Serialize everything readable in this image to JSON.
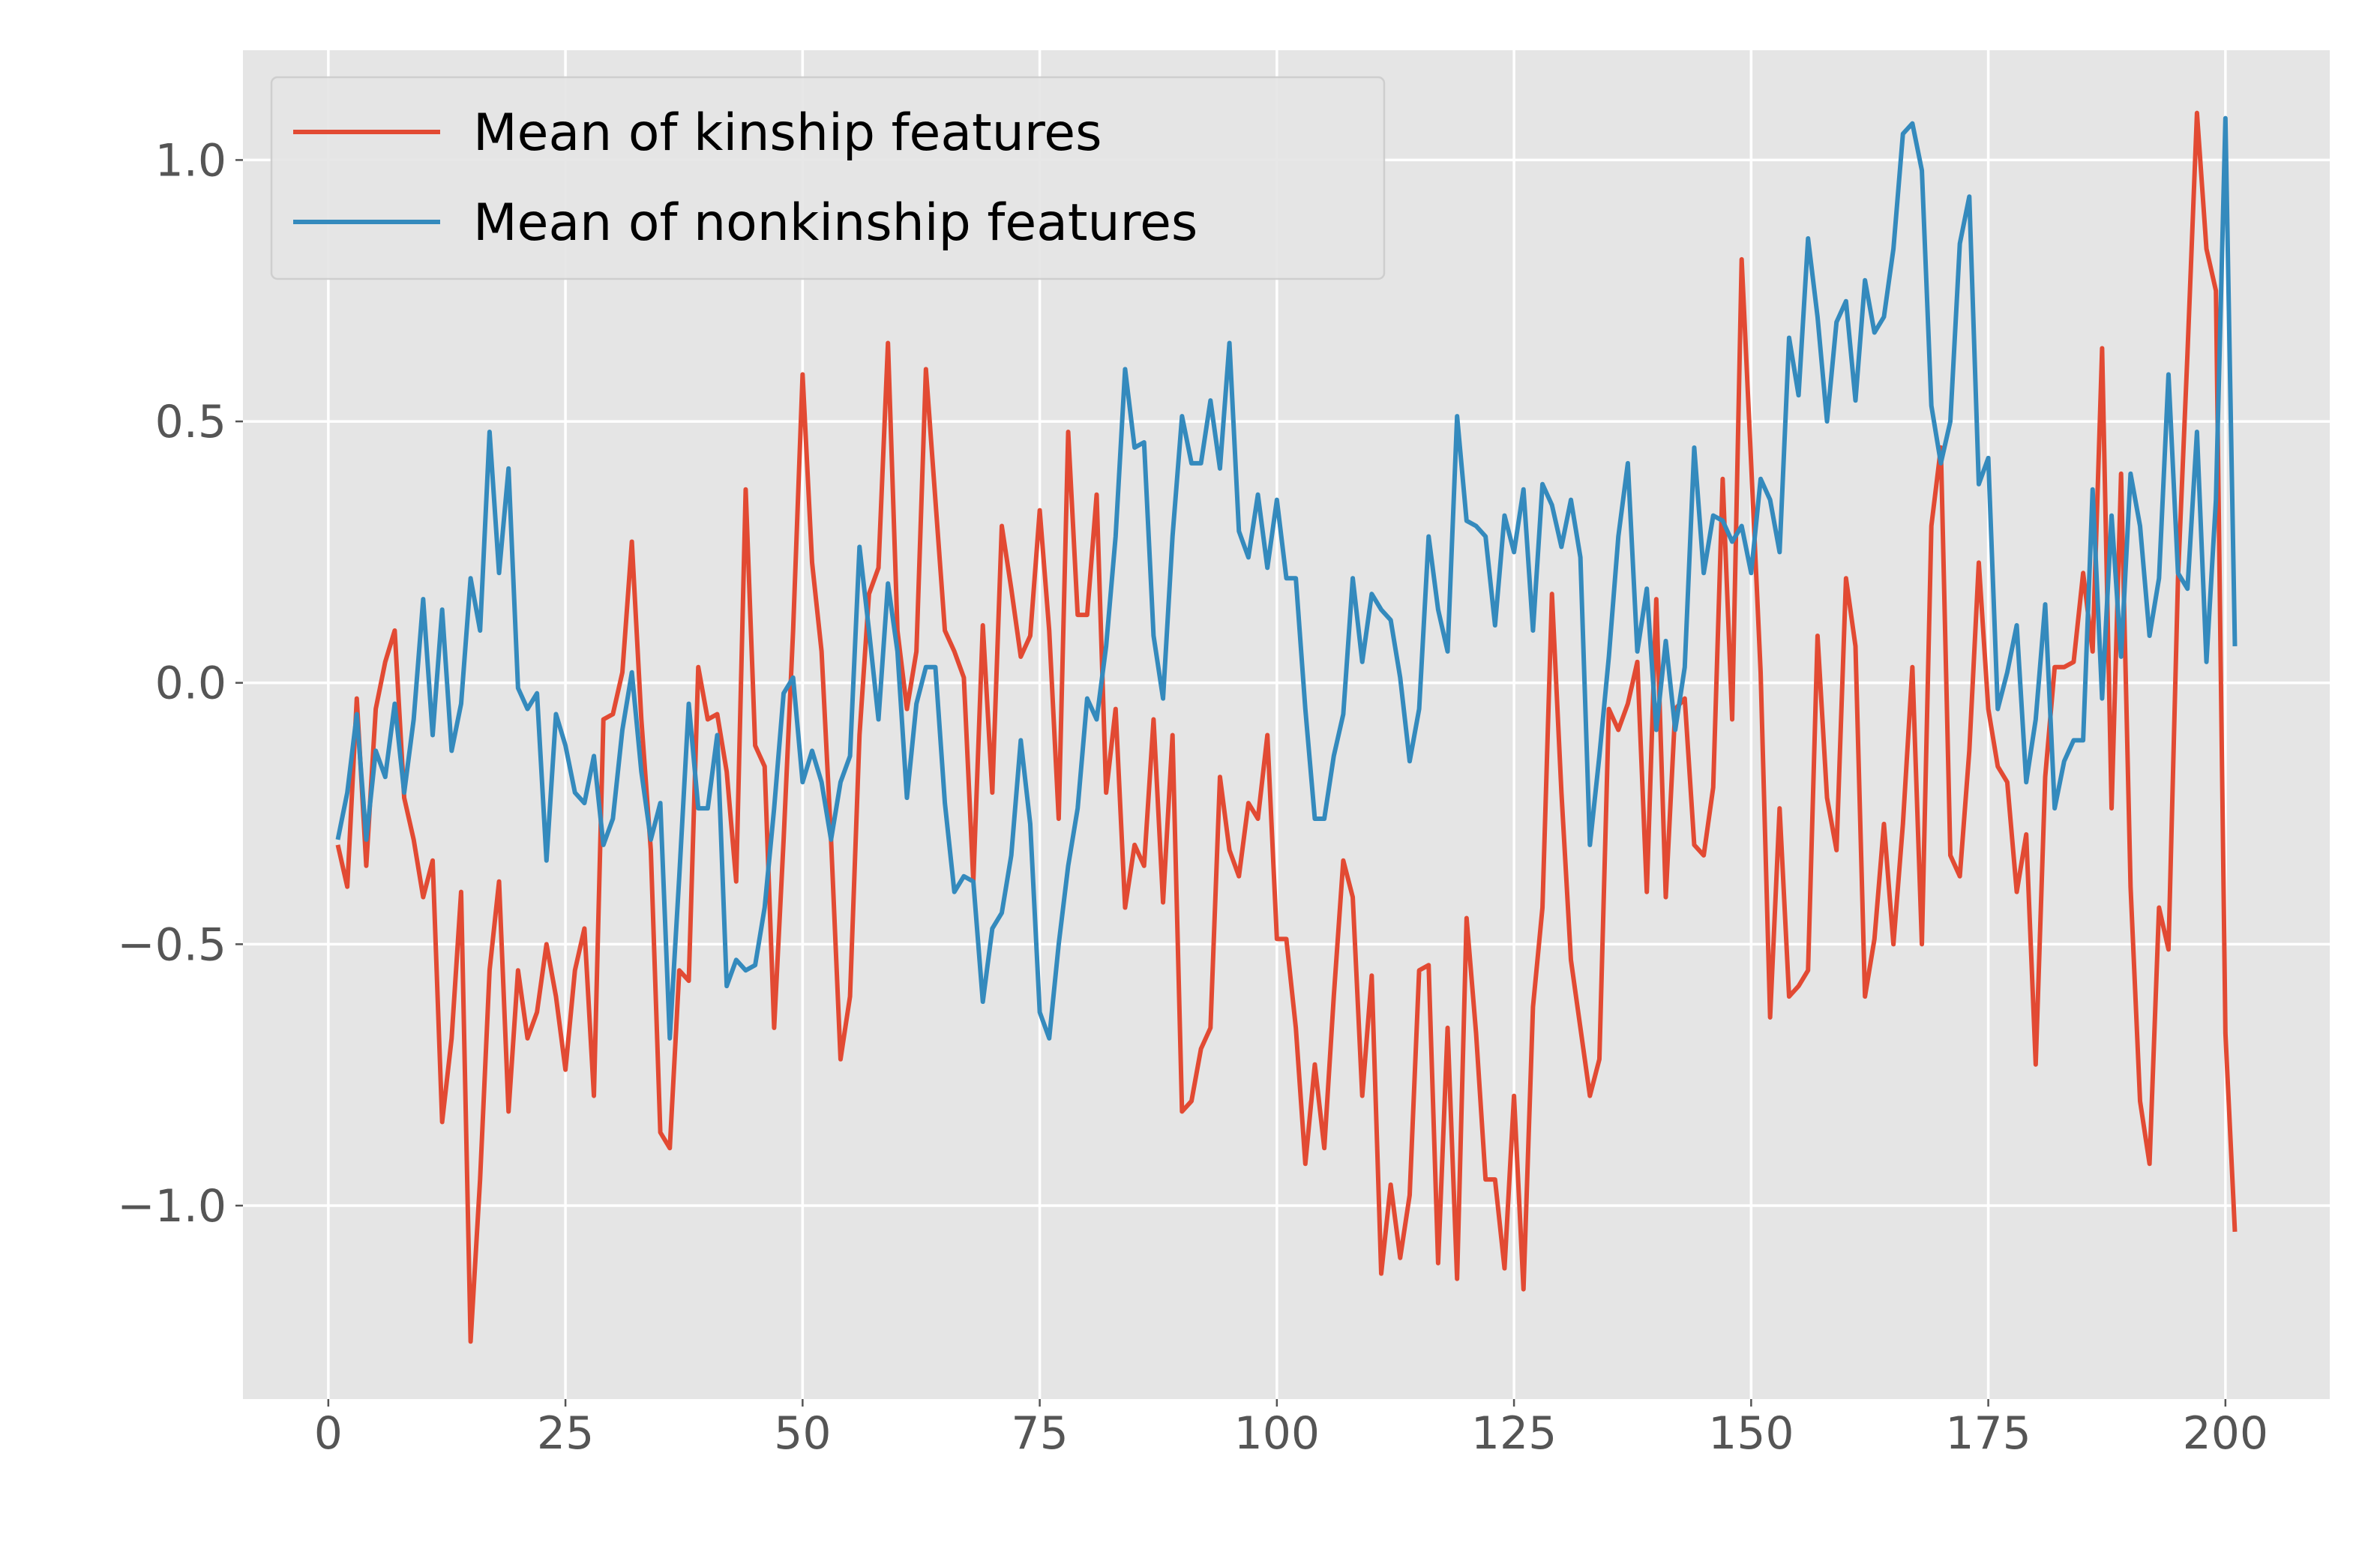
{
  "chart_data": {
    "type": "line",
    "x": [
      1,
      2,
      3,
      4,
      5,
      6,
      7,
      8,
      9,
      10,
      11,
      12,
      13,
      14,
      15,
      16,
      17,
      18,
      19,
      20,
      21,
      22,
      23,
      24,
      25,
      26,
      27,
      28,
      29,
      30,
      31,
      32,
      33,
      34,
      35,
      36,
      37,
      38,
      39,
      40,
      41,
      42,
      43,
      44,
      45,
      46,
      47,
      48,
      49,
      50,
      51,
      52,
      53,
      54,
      55,
      56,
      57,
      58,
      59,
      60,
      61,
      62,
      63,
      64,
      65,
      66,
      67,
      68,
      69,
      70,
      71,
      72,
      73,
      74,
      75,
      76,
      77,
      78,
      79,
      80,
      81,
      82,
      83,
      84,
      85,
      86,
      87,
      88,
      89,
      90,
      91,
      92,
      93,
      94,
      95,
      96,
      97,
      98,
      99,
      100,
      101,
      102,
      103,
      104,
      105,
      106,
      107,
      108,
      109,
      110,
      111,
      112,
      113,
      114,
      115,
      116,
      117,
      118,
      119,
      120,
      121,
      122,
      123,
      124,
      125,
      126,
      127,
      128,
      129,
      130,
      131,
      132,
      133,
      134,
      135,
      136,
      137,
      138,
      139,
      140,
      141,
      142,
      143,
      144,
      145,
      146,
      147,
      148,
      149,
      150,
      151,
      152,
      153,
      154,
      155,
      156,
      157,
      158,
      159,
      160,
      161,
      162,
      163,
      164,
      165,
      166,
      167,
      168,
      169,
      170,
      171,
      172,
      173,
      174,
      175,
      176,
      177,
      178,
      179,
      180,
      181,
      182,
      183,
      184,
      185,
      186,
      187,
      188,
      189,
      190,
      191,
      192,
      193,
      194,
      195,
      196,
      197,
      198,
      199,
      200,
      201
    ],
    "series": [
      {
        "name": "Mean of kinship features",
        "color": "#E24A33",
        "values": [
          -0.31,
          -0.39,
          -0.03,
          -0.35,
          -0.05,
          0.04,
          0.1,
          -0.22,
          -0.3,
          -0.41,
          -0.34,
          -0.84,
          -0.68,
          -0.4,
          -1.26,
          -0.95,
          -0.55,
          -0.38,
          -0.82,
          -0.55,
          -0.68,
          -0.63,
          -0.5,
          -0.6,
          -0.74,
          -0.55,
          -0.47,
          -0.79,
          -0.07,
          -0.06,
          0.02,
          0.27,
          -0.07,
          -0.32,
          -0.86,
          -0.89,
          -0.55,
          -0.57,
          0.03,
          -0.07,
          -0.06,
          -0.17,
          -0.38,
          0.37,
          -0.12,
          -0.16,
          -0.66,
          -0.3,
          0.1,
          0.59,
          0.23,
          0.06,
          -0.3,
          -0.72,
          -0.6,
          -0.1,
          0.17,
          0.22,
          0.65,
          0.1,
          -0.05,
          0.06,
          0.6,
          0.35,
          0.1,
          0.06,
          0.01,
          -0.38,
          0.11,
          -0.21,
          0.3,
          0.18,
          0.05,
          0.09,
          0.33,
          0.1,
          -0.26,
          0.48,
          0.13,
          0.13,
          0.36,
          -0.21,
          -0.05,
          -0.43,
          -0.31,
          -0.35,
          -0.07,
          -0.42,
          -0.1,
          -0.82,
          -0.8,
          -0.7,
          -0.66,
          -0.18,
          -0.32,
          -0.37,
          -0.23,
          -0.26,
          -0.1,
          -0.49,
          -0.49,
          -0.66,
          -0.92,
          -0.73,
          -0.89,
          -0.6,
          -0.34,
          -0.41,
          -0.79,
          -0.56,
          -1.13,
          -0.96,
          -1.1,
          -0.98,
          -0.55,
          -0.54,
          -1.11,
          -0.66,
          -1.14,
          -0.45,
          -0.67,
          -0.95,
          -0.95,
          -1.12,
          -0.79,
          -1.16,
          -0.62,
          -0.43,
          0.17,
          -0.21,
          -0.53,
          -0.66,
          -0.79,
          -0.72,
          -0.05,
          -0.09,
          -0.04,
          0.04,
          -0.4,
          0.16,
          -0.41,
          -0.05,
          -0.03,
          -0.31,
          -0.33,
          -0.2,
          0.39,
          -0.07,
          0.81,
          0.42,
          0.02,
          -0.64,
          -0.24,
          -0.6,
          -0.58,
          -0.55,
          0.09,
          -0.22,
          -0.32,
          0.2,
          0.07,
          -0.6,
          -0.49,
          -0.27,
          -0.5,
          -0.27,
          0.03,
          -0.5,
          0.3,
          0.45,
          -0.33,
          -0.37,
          -0.13,
          0.23,
          -0.05,
          -0.16,
          -0.19,
          -0.4,
          -0.29,
          -0.73,
          -0.18,
          0.03,
          0.03,
          0.04,
          0.21,
          0.06,
          0.64,
          -0.24,
          0.4,
          -0.39,
          -0.8,
          -0.92,
          -0.43,
          -0.51,
          0.2,
          0.63,
          1.09,
          0.83,
          0.75,
          -0.67,
          -1.05
        ]
      },
      {
        "name": "Mean of nonkinship features",
        "color": "#348ABD",
        "values": [
          -0.3,
          -0.21,
          -0.06,
          -0.3,
          -0.13,
          -0.18,
          -0.04,
          -0.21,
          -0.07,
          0.16,
          -0.1,
          0.14,
          -0.13,
          -0.04,
          0.2,
          0.1,
          0.48,
          0.21,
          0.41,
          -0.01,
          -0.05,
          -0.02,
          -0.34,
          -0.06,
          -0.12,
          -0.21,
          -0.23,
          -0.14,
          -0.31,
          -0.26,
          -0.09,
          0.02,
          -0.17,
          -0.3,
          -0.23,
          -0.68,
          -0.37,
          -0.04,
          -0.24,
          -0.24,
          -0.1,
          -0.58,
          -0.53,
          -0.55,
          -0.54,
          -0.43,
          -0.24,
          -0.02,
          0.01,
          -0.19,
          -0.13,
          -0.19,
          -0.3,
          -0.19,
          -0.14,
          0.26,
          0.1,
          -0.07,
          0.19,
          0.06,
          -0.22,
          -0.04,
          0.03,
          0.03,
          -0.23,
          -0.4,
          -0.37,
          -0.38,
          -0.61,
          -0.47,
          -0.44,
          -0.33,
          -0.11,
          -0.27,
          -0.63,
          -0.68,
          -0.5,
          -0.35,
          -0.24,
          -0.03,
          -0.07,
          0.07,
          0.28,
          0.6,
          0.45,
          0.46,
          0.09,
          -0.03,
          0.28,
          0.51,
          0.42,
          0.42,
          0.54,
          0.41,
          0.65,
          0.29,
          0.24,
          0.36,
          0.22,
          0.35,
          0.2,
          0.2,
          -0.05,
          -0.26,
          -0.26,
          -0.14,
          -0.06,
          0.2,
          0.04,
          0.17,
          0.14,
          0.12,
          0.01,
          -0.15,
          -0.05,
          0.28,
          0.14,
          0.06,
          0.51,
          0.31,
          0.3,
          0.28,
          0.11,
          0.32,
          0.25,
          0.37,
          0.1,
          0.38,
          0.34,
          0.26,
          0.35,
          0.24,
          -0.31,
          -0.14,
          0.05,
          0.28,
          0.42,
          0.06,
          0.18,
          -0.09,
          0.08,
          -0.09,
          0.03,
          0.45,
          0.21,
          0.32,
          0.31,
          0.27,
          0.3,
          0.21,
          0.39,
          0.35,
          0.25,
          0.66,
          0.55,
          0.85,
          0.7,
          0.5,
          0.69,
          0.73,
          0.54,
          0.77,
          0.67,
          0.7,
          0.83,
          1.05,
          1.07,
          0.98,
          0.53,
          0.42,
          0.5,
          0.84,
          0.93,
          0.38,
          0.43,
          -0.05,
          0.02,
          0.11,
          -0.19,
          -0.07,
          0.15,
          -0.24,
          -0.15,
          -0.11,
          -0.11,
          0.37,
          -0.03,
          0.32,
          0.05,
          0.4,
          0.3,
          0.09,
          0.2,
          0.59,
          0.21,
          0.18,
          0.48,
          0.04,
          0.35,
          1.08,
          0.07
        ]
      }
    ],
    "xlim": [
      -9,
      211
    ],
    "ylim": [
      -1.37,
      1.21
    ],
    "xticks": [
      0,
      25,
      50,
      75,
      100,
      125,
      150,
      175,
      200
    ],
    "yticks": [
      {
        "value": -1.0,
        "label": "−1.0"
      },
      {
        "value": -0.5,
        "label": "−0.5"
      },
      {
        "value": 0.0,
        "label": "0.0"
      },
      0.5,
      {
        "value": 1.0,
        "label": "1.0"
      }
    ],
    "grid": true,
    "legend": "upper left"
  }
}
